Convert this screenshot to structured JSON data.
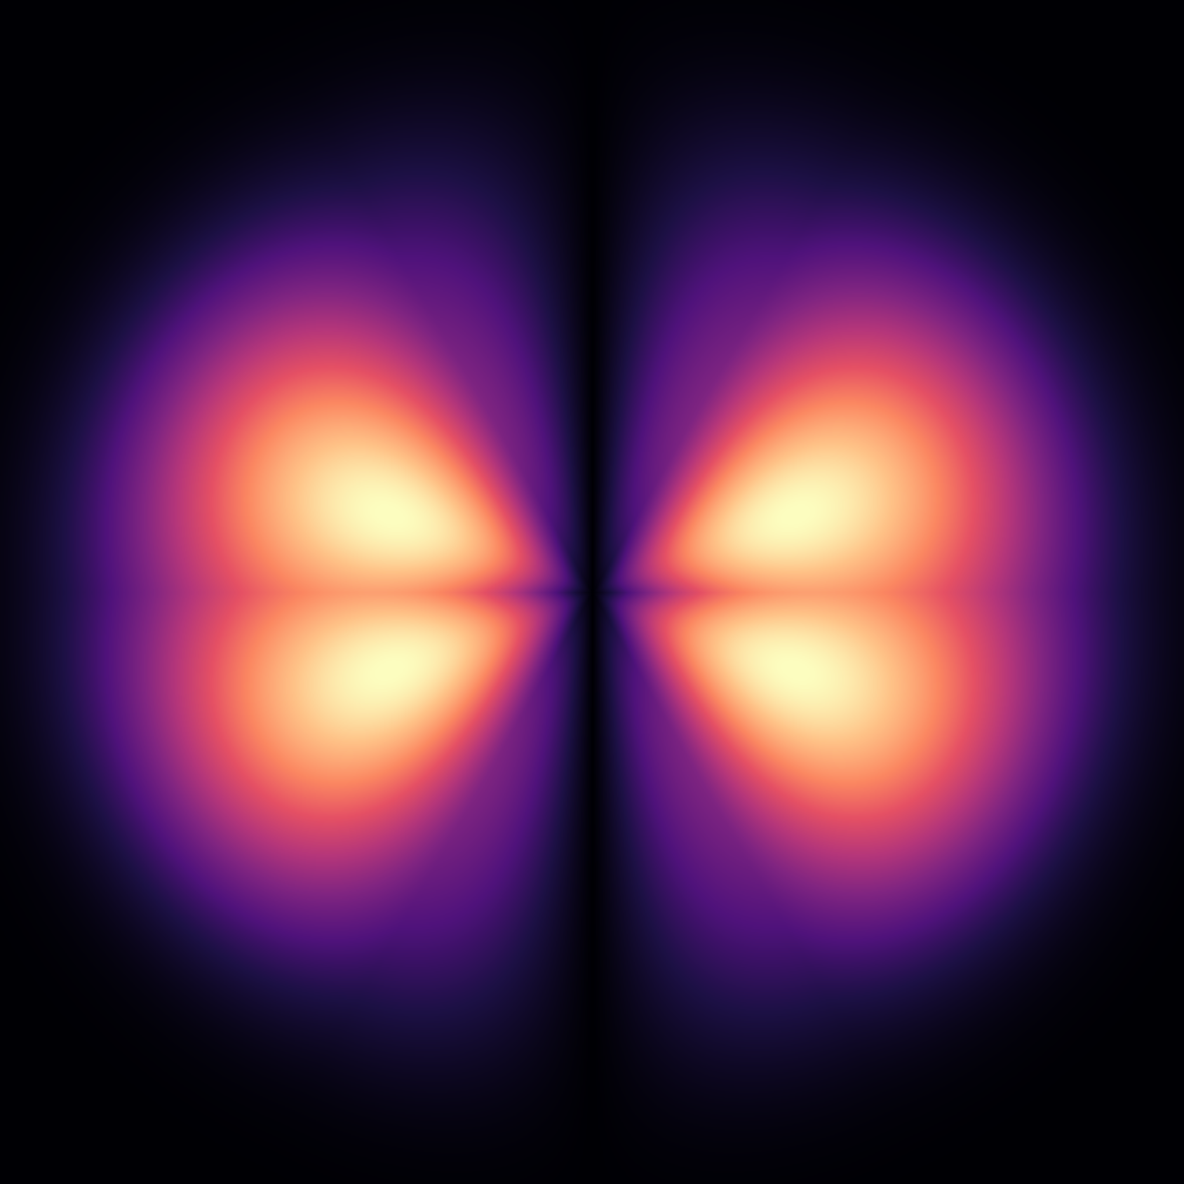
{
  "image": {
    "subject": "orbital-probability-density",
    "colormap": "magma",
    "background_color": "#000004",
    "colormap_stops": [
      {
        "t": 0.0,
        "color": "#000004"
      },
      {
        "t": 0.13,
        "color": "#1c1044"
      },
      {
        "t": 0.25,
        "color": "#4f127b"
      },
      {
        "t": 0.38,
        "color": "#812581"
      },
      {
        "t": 0.5,
        "color": "#b5367a"
      },
      {
        "t": 0.63,
        "color": "#e55064"
      },
      {
        "t": 0.75,
        "color": "#fb8761"
      },
      {
        "t": 0.88,
        "color": "#fec287"
      },
      {
        "t": 1.0,
        "color": "#fcfdbf"
      }
    ]
  }
}
